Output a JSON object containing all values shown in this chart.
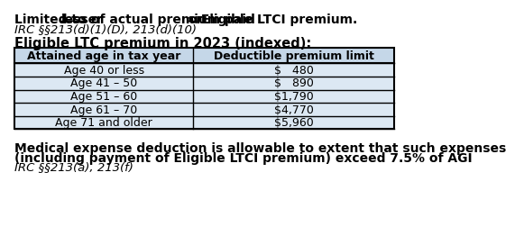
{
  "title_part1": "Limited to ",
  "title_underline1": "lesser",
  "title_part2": " of actual premium paid ",
  "title_underline2": "or",
  "title_part3": " Eligible LTCI premium.",
  "title_italic": "IRC §§213(d)(1)(D), 213(d)(10)",
  "subtitle": "Eligible LTC premium in 2023 (indexed):",
  "table_headers": [
    "Attained age in tax year",
    "Deductible premium limit"
  ],
  "table_rows": [
    [
      "Age 40 or less",
      "$   480"
    ],
    [
      "Age 41 – 50",
      "$   890"
    ],
    [
      "Age 51 – 60",
      "$1,790"
    ],
    [
      "Age 61 – 70",
      "$4,770"
    ],
    [
      "Age 71 and older",
      "$5,960"
    ]
  ],
  "footer_bold_line1": "Medical expense deduction is allowable to extent that such expenses",
  "footer_bold_line2": "(including payment of Eligible LTCI premium) exceed 7.5% of AGI",
  "footer_italic": "IRC §§213(a), 213(f)",
  "header_bg": "#c5d7e8",
  "row_bg": "#dce8f3",
  "border_color": "#000000",
  "bg_color": "#ffffff",
  "text_color": "#000000",
  "table_header_fontsize": 9,
  "table_row_fontsize": 9,
  "title_fontsize": 10,
  "subtitle_fontsize": 10.5,
  "footer_fontsize": 10
}
